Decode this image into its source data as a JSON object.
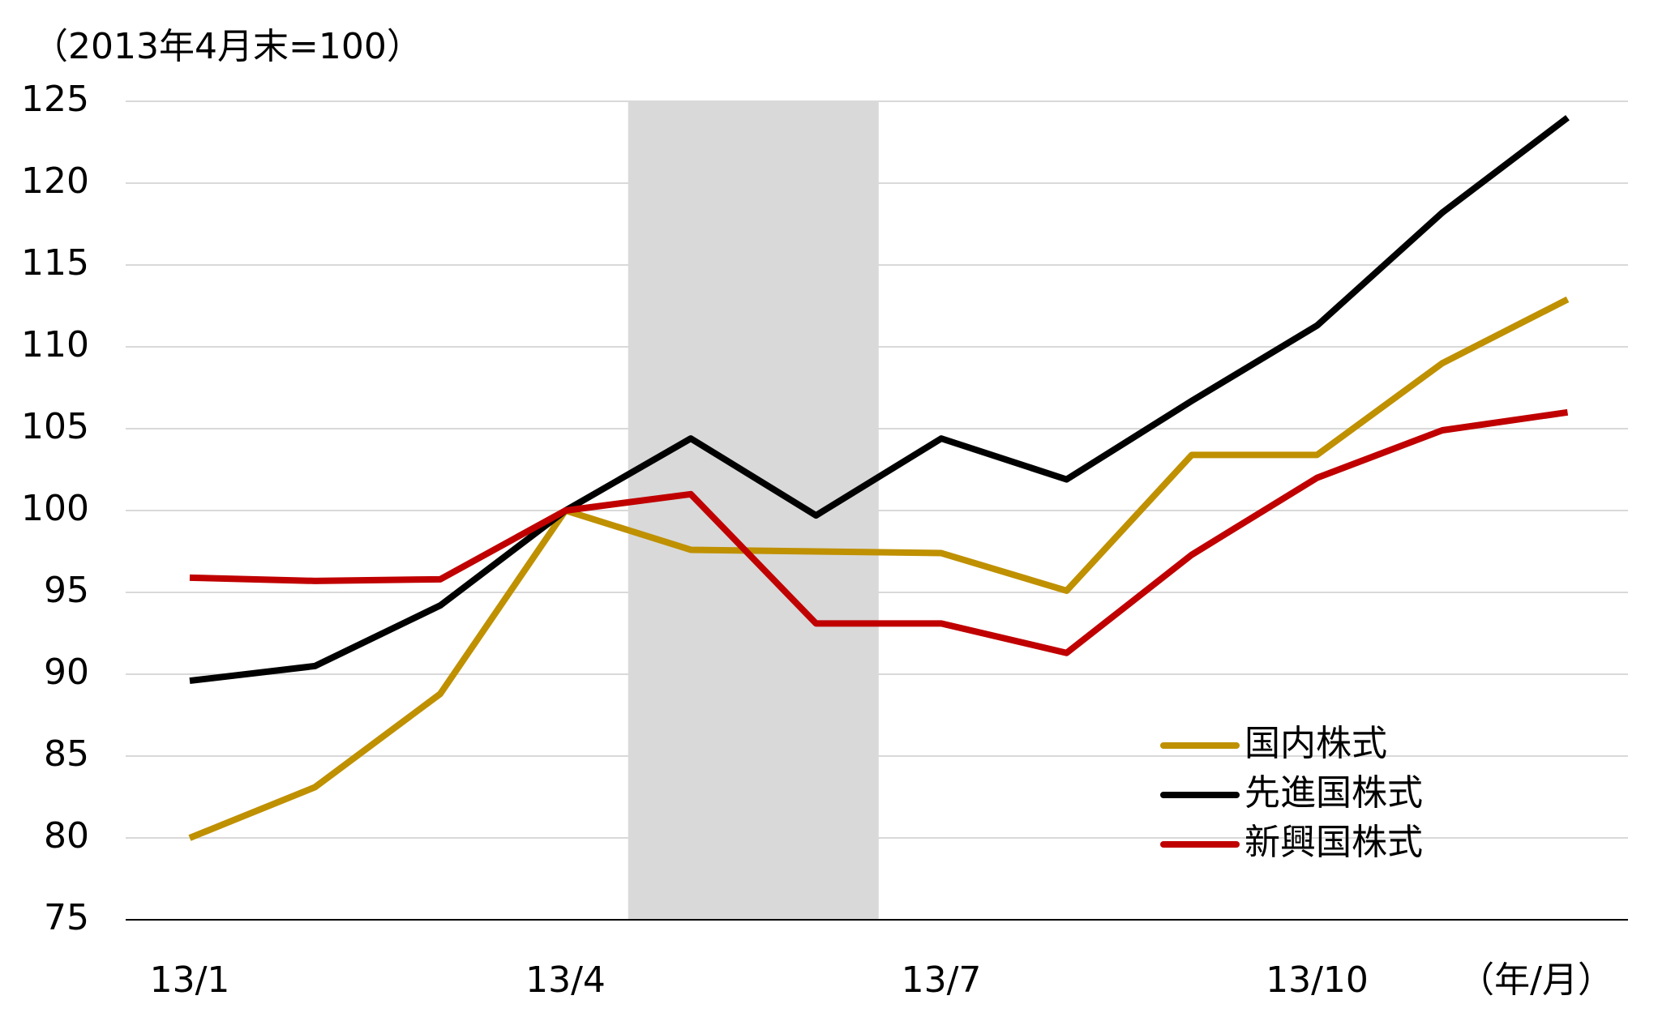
{
  "chart_data": {
    "type": "line",
    "y_unit_label": "（2013年4月末=100）",
    "x_unit_label": "（年/月）",
    "categories": [
      "13/1",
      null,
      null,
      "13/4",
      null,
      null,
      "13/7",
      null,
      null,
      "13/10",
      null,
      null
    ],
    "series": [
      {
        "name": "国内株式",
        "color": "#bf9000",
        "values": [
          80,
          83.1,
          88.8,
          100,
          97.6,
          97.5,
          97.4,
          95.1,
          103.4,
          103.4,
          109.0,
          112.9
        ]
      },
      {
        "name": "先進国株式",
        "color": "#000000",
        "values": [
          89.6,
          90.5,
          94.2,
          100,
          104.4,
          99.7,
          104.4,
          101.9,
          106.7,
          111.3,
          118.2,
          124.0
        ]
      },
      {
        "name": "新興国株式",
        "color": "#c00000",
        "values": [
          95.9,
          95.7,
          95.8,
          100,
          101.0,
          93.1,
          93.1,
          91.3,
          97.3,
          102.0,
          104.9,
          106.0
        ]
      }
    ],
    "ylim": [
      75,
      125
    ],
    "yticks": [
      75,
      80,
      85,
      90,
      95,
      100,
      105,
      110,
      115,
      120,
      125
    ],
    "grid": true,
    "legend": "lower-right"
  }
}
